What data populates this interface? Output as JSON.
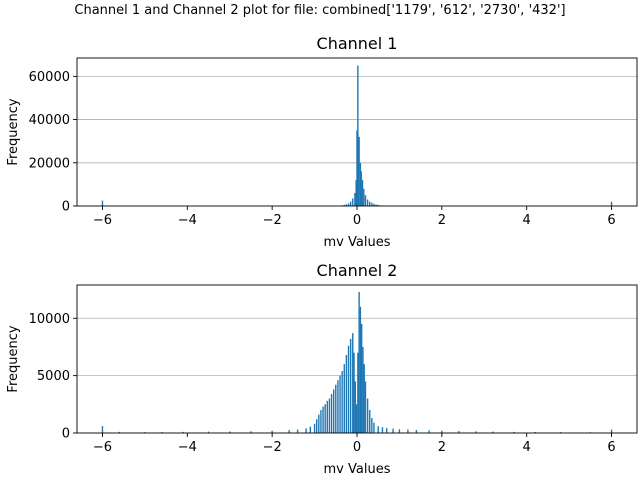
{
  "figure": {
    "suptitle": "Channel 1 and Channel 2 plot for file: combined['1179', '612', '2730', '432']"
  },
  "chart_data": [
    {
      "type": "histogram",
      "title": "Channel 1",
      "xlabel": "mv Values",
      "ylabel": "Frequency",
      "xlim": [
        -6.6,
        6.6
      ],
      "ylim": [
        0,
        68500
      ],
      "xticks": [
        -6,
        -4,
        -2,
        0,
        2,
        4,
        6
      ],
      "xtick_labels": [
        "−6",
        "−4",
        "−2",
        "0",
        "2",
        "4",
        "6"
      ],
      "yticks": [
        0,
        20000,
        40000,
        60000
      ],
      "ytick_labels": [
        "0",
        "20000",
        "40000",
        "60000"
      ],
      "grid": "y-major",
      "bar_color": "#1f77b4",
      "bins": [
        {
          "x": -6.0,
          "y": 2500
        },
        {
          "x": -0.35,
          "y": 300
        },
        {
          "x": -0.3,
          "y": 500
        },
        {
          "x": -0.25,
          "y": 800
        },
        {
          "x": -0.2,
          "y": 1200
        },
        {
          "x": -0.15,
          "y": 2000
        },
        {
          "x": -0.1,
          "y": 3500
        },
        {
          "x": -0.05,
          "y": 6000
        },
        {
          "x": -0.02,
          "y": 12000
        },
        {
          "x": 0.0,
          "y": 35000
        },
        {
          "x": 0.02,
          "y": 65000
        },
        {
          "x": 0.05,
          "y": 32000
        },
        {
          "x": 0.08,
          "y": 20000
        },
        {
          "x": 0.1,
          "y": 16000
        },
        {
          "x": 0.13,
          "y": 12000
        },
        {
          "x": 0.16,
          "y": 8000
        },
        {
          "x": 0.2,
          "y": 5000
        },
        {
          "x": 0.25,
          "y": 3000
        },
        {
          "x": 0.3,
          "y": 2000
        },
        {
          "x": 0.35,
          "y": 1500
        },
        {
          "x": 0.4,
          "y": 1000
        },
        {
          "x": 0.45,
          "y": 700
        },
        {
          "x": 0.5,
          "y": 500
        },
        {
          "x": 0.55,
          "y": 300
        },
        {
          "x": 0.6,
          "y": 200
        },
        {
          "x": 6.0,
          "y": 2000
        }
      ]
    },
    {
      "type": "histogram",
      "title": "Channel 2",
      "xlabel": "mv Values",
      "ylabel": "Frequency",
      "xlim": [
        -6.6,
        6.6
      ],
      "ylim": [
        0,
        12900
      ],
      "xticks": [
        -6,
        -4,
        -2,
        0,
        2,
        4,
        6
      ],
      "xtick_labels": [
        "−6",
        "−4",
        "−2",
        "0",
        "2",
        "4",
        "6"
      ],
      "yticks": [
        0,
        5000,
        10000
      ],
      "ytick_labels": [
        "0",
        "5000",
        "10000"
      ],
      "grid": "y-major",
      "bar_color": "#1f77b4",
      "bins": [
        {
          "x": -6.0,
          "y": 600
        },
        {
          "x": -5.6,
          "y": 100
        },
        {
          "x": -5.0,
          "y": 80
        },
        {
          "x": -4.6,
          "y": 80
        },
        {
          "x": -4.1,
          "y": 100
        },
        {
          "x": -3.5,
          "y": 120
        },
        {
          "x": -3.0,
          "y": 130
        },
        {
          "x": -2.5,
          "y": 150
        },
        {
          "x": -2.0,
          "y": 200
        },
        {
          "x": -1.6,
          "y": 250
        },
        {
          "x": -1.4,
          "y": 300
        },
        {
          "x": -1.2,
          "y": 400
        },
        {
          "x": -1.1,
          "y": 550
        },
        {
          "x": -1.0,
          "y": 800
        },
        {
          "x": -0.95,
          "y": 1200
        },
        {
          "x": -0.9,
          "y": 1600
        },
        {
          "x": -0.85,
          "y": 2000
        },
        {
          "x": -0.8,
          "y": 2300
        },
        {
          "x": -0.75,
          "y": 2500
        },
        {
          "x": -0.7,
          "y": 2800
        },
        {
          "x": -0.65,
          "y": 3000
        },
        {
          "x": -0.6,
          "y": 3400
        },
        {
          "x": -0.55,
          "y": 3800
        },
        {
          "x": -0.5,
          "y": 4200
        },
        {
          "x": -0.45,
          "y": 4600
        },
        {
          "x": -0.4,
          "y": 5000
        },
        {
          "x": -0.35,
          "y": 5400
        },
        {
          "x": -0.3,
          "y": 6000
        },
        {
          "x": -0.25,
          "y": 6800
        },
        {
          "x": -0.2,
          "y": 7600
        },
        {
          "x": -0.15,
          "y": 8200
        },
        {
          "x": -0.1,
          "y": 8700
        },
        {
          "x": -0.07,
          "y": 7000
        },
        {
          "x": -0.04,
          "y": 4500
        },
        {
          "x": -0.01,
          "y": 2500
        },
        {
          "x": 0.02,
          "y": 7000
        },
        {
          "x": 0.05,
          "y": 12300
        },
        {
          "x": 0.08,
          "y": 11000
        },
        {
          "x": 0.11,
          "y": 9500
        },
        {
          "x": 0.14,
          "y": 7500
        },
        {
          "x": 0.17,
          "y": 6000
        },
        {
          "x": 0.2,
          "y": 4500
        },
        {
          "x": 0.25,
          "y": 3000
        },
        {
          "x": 0.3,
          "y": 2000
        },
        {
          "x": 0.35,
          "y": 1300
        },
        {
          "x": 0.4,
          "y": 900
        },
        {
          "x": 0.5,
          "y": 600
        },
        {
          "x": 0.6,
          "y": 500
        },
        {
          "x": 0.7,
          "y": 420
        },
        {
          "x": 0.85,
          "y": 380
        },
        {
          "x": 1.0,
          "y": 330
        },
        {
          "x": 1.2,
          "y": 300
        },
        {
          "x": 1.4,
          "y": 260
        },
        {
          "x": 1.7,
          "y": 220
        },
        {
          "x": 2.0,
          "y": 200
        },
        {
          "x": 2.4,
          "y": 170
        },
        {
          "x": 2.8,
          "y": 140
        },
        {
          "x": 3.2,
          "y": 120
        },
        {
          "x": 3.7,
          "y": 100
        },
        {
          "x": 4.2,
          "y": 90
        },
        {
          "x": 4.8,
          "y": 80
        },
        {
          "x": 5.5,
          "y": 70
        },
        {
          "x": 6.0,
          "y": 300
        }
      ]
    }
  ]
}
